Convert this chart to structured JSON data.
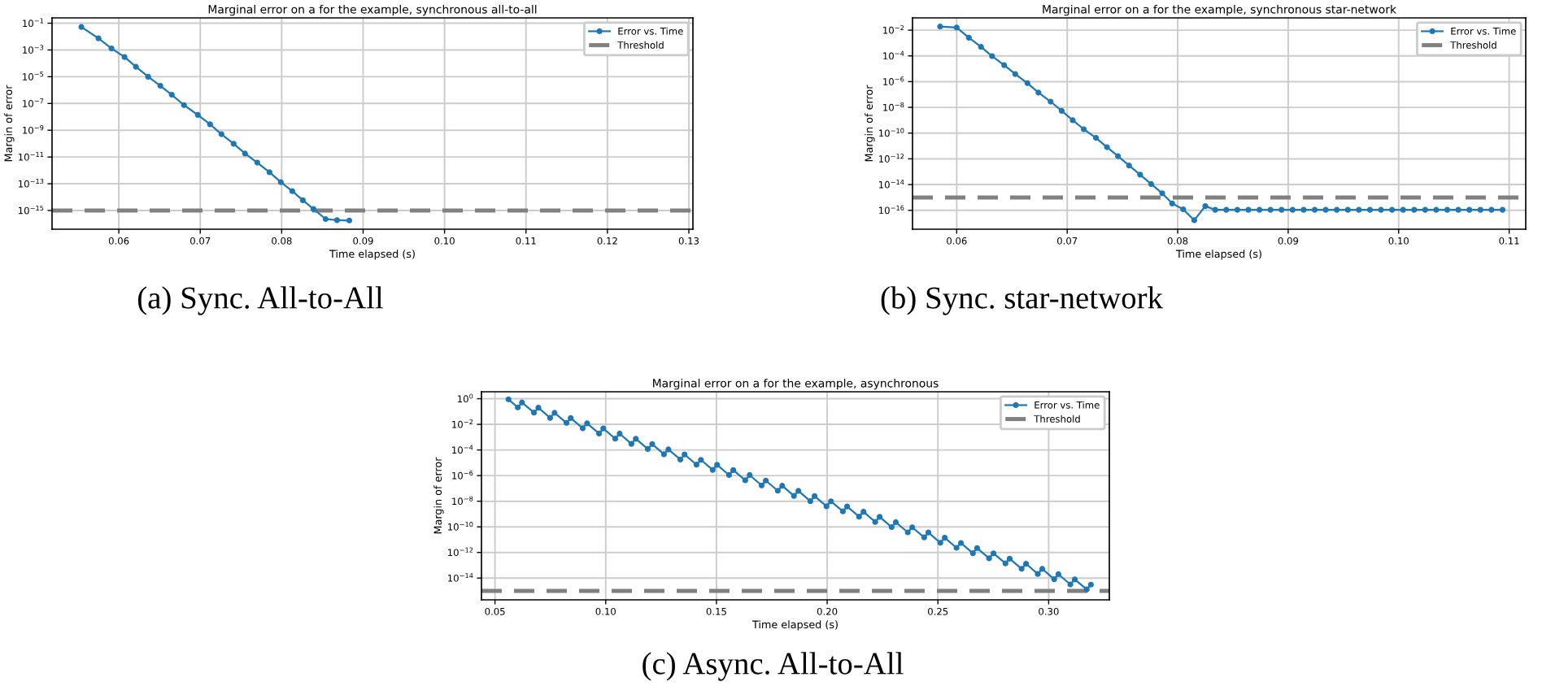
{
  "chart_data": [
    {
      "type": "line",
      "title": "Marginal error on a for the example, synchronous all-to-all",
      "xlabel": "Time elapsed (s)",
      "ylabel": "Margin of error",
      "log": "y",
      "grid": true,
      "legend": "top right",
      "marker": "circle",
      "line_style": "solid",
      "xlim": [
        0.0518,
        0.1305
      ],
      "ylim": [
        4e-17,
        0.25
      ],
      "xticks": [
        {
          "value": 0.06,
          "label": "0.06"
        },
        {
          "value": 0.07,
          "label": "0.07"
        },
        {
          "value": 0.08,
          "label": "0.08"
        },
        {
          "value": 0.09,
          "label": "0.09"
        },
        {
          "value": 0.1,
          "label": "0.10"
        },
        {
          "value": 0.11,
          "label": "0.11"
        },
        {
          "value": 0.12,
          "label": "0.12"
        },
        {
          "value": 0.13,
          "label": "0.13"
        }
      ],
      "yticks": [
        {
          "value": 0.1,
          "label": "10$^{−1}$"
        },
        {
          "value": 0.001,
          "label": "10$^{−3}$"
        },
        {
          "value": 1e-05,
          "label": "10$^{−5}$"
        },
        {
          "value": 1e-07,
          "label": "10$^{−7}$"
        },
        {
          "value": 1e-09,
          "label": "10$^{−9}$"
        },
        {
          "value": 1e-11,
          "label": "10$^{−11}$"
        },
        {
          "value": 1e-13,
          "label": "10$^{−13}$"
        },
        {
          "value": 1e-15,
          "label": "10$^{−15}$"
        }
      ],
      "x": [
        0.0554,
        0.0575,
        0.0591,
        0.0607,
        0.0621,
        0.0636,
        0.0651,
        0.0665,
        0.068,
        0.0697,
        0.0712,
        0.0726,
        0.0741,
        0.0755,
        0.077,
        0.0785,
        0.0799,
        0.0813,
        0.0826,
        0.0839,
        0.0854,
        0.0868,
        0.0883
      ],
      "series": [
        {
          "name": "Error vs. Time",
          "color": "#1f77b4",
          "values": [
            0.052,
            0.0074,
            0.0013,
            0.0003,
            5.5e-05,
            1e-05,
            2.1e-06,
            4.5e-07,
            7.6e-08,
            1.4e-08,
            2.8e-09,
            5.1e-10,
            9.8e-11,
            1.8e-11,
            3.8e-12,
            7.2e-13,
            1.3e-13,
            2.8e-14,
            5.8e-15,
            1.3e-15,
            2.3e-16,
            1.9e-16,
            1.8e-16
          ]
        }
      ],
      "ref_lines": [
        {
          "axis": "y",
          "value": 1e-15,
          "label": "Threshold",
          "color": "#808080",
          "line_style": "dashed"
        }
      ],
      "annotations": [
        "(a) Sync. All-to-All"
      ]
    },
    {
      "type": "line",
      "title": "Marginal error on a for the example, synchronous star-network",
      "xlabel": "Time elapsed (s)",
      "ylabel": "Margin of error",
      "log": "y",
      "grid": true,
      "legend": "top right",
      "marker": "circle",
      "line_style": "solid",
      "xlim": [
        0.056,
        0.1115
      ],
      "ylim": [
        3.4e-18,
        0.09
      ],
      "xticks": [
        {
          "value": 0.06,
          "label": "0.06"
        },
        {
          "value": 0.07,
          "label": "0.07"
        },
        {
          "value": 0.08,
          "label": "0.08"
        },
        {
          "value": 0.09,
          "label": "0.09"
        },
        {
          "value": 0.1,
          "label": "0.10"
        },
        {
          "value": 0.11,
          "label": "0.11"
        }
      ],
      "yticks": [
        {
          "value": 0.01,
          "label": "10$^{−2}$"
        },
        {
          "value": 0.0001,
          "label": "10$^{−4}$"
        },
        {
          "value": 1e-06,
          "label": "10$^{−6}$"
        },
        {
          "value": 1e-08,
          "label": "10$^{−8}$"
        },
        {
          "value": 1e-10,
          "label": "10$^{−10}$"
        },
        {
          "value": 1e-12,
          "label": "10$^{−12}$"
        },
        {
          "value": 1e-14,
          "label": "10$^{−14}$"
        },
        {
          "value": 1e-16,
          "label": "10$^{−16}$"
        }
      ],
      "x": [
        0.0585,
        0.06,
        0.0611,
        0.0622,
        0.0632,
        0.0643,
        0.0653,
        0.0664,
        0.0674,
        0.0685,
        0.0695,
        0.0705,
        0.0715,
        0.0726,
        0.0736,
        0.0746,
        0.0756,
        0.0766,
        0.0776,
        0.0786,
        0.0795,
        0.0805,
        0.0815,
        0.0825,
        0.0834,
        0.0844,
        0.0854,
        0.0864,
        0.0874,
        0.0884,
        0.0894,
        0.0904,
        0.0914,
        0.0924,
        0.0934,
        0.0944,
        0.0954,
        0.0964,
        0.0974,
        0.0984,
        0.0994,
        0.1004,
        0.1014,
        0.1024,
        0.1034,
        0.1044,
        0.1054,
        0.1064,
        0.1074,
        0.1084,
        0.1094
      ],
      "series": [
        {
          "name": "Error vs. Time",
          "color": "#1f77b4",
          "values": [
            0.019,
            0.016,
            0.0026,
            0.0005,
            9.6e-05,
            1.9e-05,
            3.9e-06,
            7.6e-07,
            1.4e-07,
            2.8e-08,
            5.4e-09,
            1e-09,
            2e-10,
            4.3e-11,
            8.1e-12,
            1.6e-12,
            3e-13,
            5.9e-14,
            1.1e-14,
            2.1e-15,
            3.4e-16,
            1.2e-16,
            1.7e-17,
            2.1e-16,
            1.1e-16,
            1.1e-16,
            1.1e-16,
            1.1e-16,
            1.1e-16,
            1.1e-16,
            1.1e-16,
            1.1e-16,
            1.1e-16,
            1.1e-16,
            1.1e-16,
            1.1e-16,
            1.1e-16,
            1.1e-16,
            1.1e-16,
            1.1e-16,
            1.1e-16,
            1.1e-16,
            1.1e-16,
            1.1e-16,
            1.1e-16,
            1.1e-16,
            1.1e-16,
            1.1e-16,
            1.1e-16,
            1.1e-16,
            1.1e-16
          ]
        }
      ],
      "ref_lines": [
        {
          "axis": "y",
          "value": 1e-15,
          "label": "Threshold",
          "color": "#808080",
          "line_style": "dashed"
        }
      ],
      "annotations": [
        "(b) Sync. star-network"
      ]
    },
    {
      "type": "line",
      "title": "Marginal error on a for the example, asynchronous",
      "xlabel": "Time elapsed (s)",
      "ylabel": "Margin of error",
      "log": "y",
      "grid": true,
      "legend": "top right",
      "marker": "circle",
      "line_style": "solid",
      "xlim": [
        0.0439,
        0.3274
      ],
      "ylim": [
        2e-16,
        3.5
      ],
      "xticks": [
        {
          "value": 0.05,
          "label": "0.05"
        },
        {
          "value": 0.1,
          "label": "0.10"
        },
        {
          "value": 0.15,
          "label": "0.15"
        },
        {
          "value": 0.2,
          "label": "0.20"
        },
        {
          "value": 0.25,
          "label": "0.25"
        },
        {
          "value": 0.3,
          "label": "0.30"
        }
      ],
      "yticks": [
        {
          "value": 1,
          "label": "10$^{0}$"
        },
        {
          "value": 0.01,
          "label": "10$^{−2}$"
        },
        {
          "value": 0.0001,
          "label": "10$^{−4}$"
        },
        {
          "value": 1e-06,
          "label": "10$^{−6}$"
        },
        {
          "value": 1e-08,
          "label": "10$^{−8}$"
        },
        {
          "value": 1e-10,
          "label": "10$^{−10}$"
        },
        {
          "value": 1e-12,
          "label": "10$^{−12}$"
        },
        {
          "value": 1e-14,
          "label": "10$^{−14}$"
        }
      ],
      "x": [
        0.0561,
        0.0603,
        0.0622,
        0.0676,
        0.0696,
        0.0749,
        0.0769,
        0.0823,
        0.0842,
        0.0896,
        0.0916,
        0.097,
        0.0989,
        0.1043,
        0.1063,
        0.1116,
        0.1136,
        0.119,
        0.121,
        0.1263,
        0.1283,
        0.1337,
        0.1356,
        0.141,
        0.143,
        0.1483,
        0.1503,
        0.1557,
        0.1576,
        0.163,
        0.165,
        0.1704,
        0.1723,
        0.1777,
        0.1797,
        0.185,
        0.187,
        0.1924,
        0.1943,
        0.1997,
        0.2017,
        0.2071,
        0.209,
        0.2144,
        0.2164,
        0.2217,
        0.2237,
        0.2291,
        0.231,
        0.2364,
        0.2384,
        0.2438,
        0.2457,
        0.2511,
        0.2531,
        0.2584,
        0.2604,
        0.2658,
        0.2677,
        0.2731,
        0.2751,
        0.2805,
        0.2824,
        0.2878,
        0.2898,
        0.2951,
        0.2971,
        0.3025,
        0.3044,
        0.3098,
        0.3118,
        0.3172,
        0.3191
      ],
      "series": [
        {
          "name": "Error vs. Time",
          "color": "#1f77b4",
          "values": [
            0.9,
            0.21,
            0.51,
            0.082,
            0.2,
            0.032,
            0.079,
            0.013,
            0.031,
            0.005,
            0.012,
            0.0019,
            0.0048,
            0.00076,
            0.0019,
            0.0003,
            0.00074,
            0.00012,
            0.00029,
            4.6e-05,
            0.00011,
            1.8e-05,
            4.5e-05,
            7.1e-06,
            1.7e-05,
            2.8e-06,
            6.9e-06,
            1.1e-06,
            2.7e-06,
            4.3e-07,
            1.1e-06,
            1.7e-07,
            4.1e-07,
            6.6e-08,
            1.6e-07,
            2.6e-08,
            6.4e-08,
            1e-08,
            2.5e-08,
            4e-09,
            9.8e-09,
            1.6e-09,
            3.9e-09,
            6.2e-10,
            1.5e-09,
            2.4e-10,
            6e-10,
            9.5e-11,
            2.3e-10,
            3.7e-11,
            9.2e-11,
            1.5e-11,
            3.6e-11,
            5.7e-12,
            1.4e-11,
            2.3e-12,
            5.5e-12,
            8.8e-13,
            2.2e-12,
            3.5e-13,
            8.5e-13,
            1.4e-13,
            3.3e-13,
            5.3e-14,
            1.3e-13,
            2.1e-14,
            5.2e-14,
            8.2e-15,
            2e-14,
            3.2e-15,
            7.9e-15,
            1.3e-15,
            3.1e-15
          ]
        }
      ],
      "ref_lines": [
        {
          "axis": "y",
          "value": 1e-15,
          "label": "Threshold",
          "color": "#808080",
          "line_style": "dashed"
        }
      ],
      "annotations": [
        "(c) Async. All-to-All"
      ]
    }
  ]
}
